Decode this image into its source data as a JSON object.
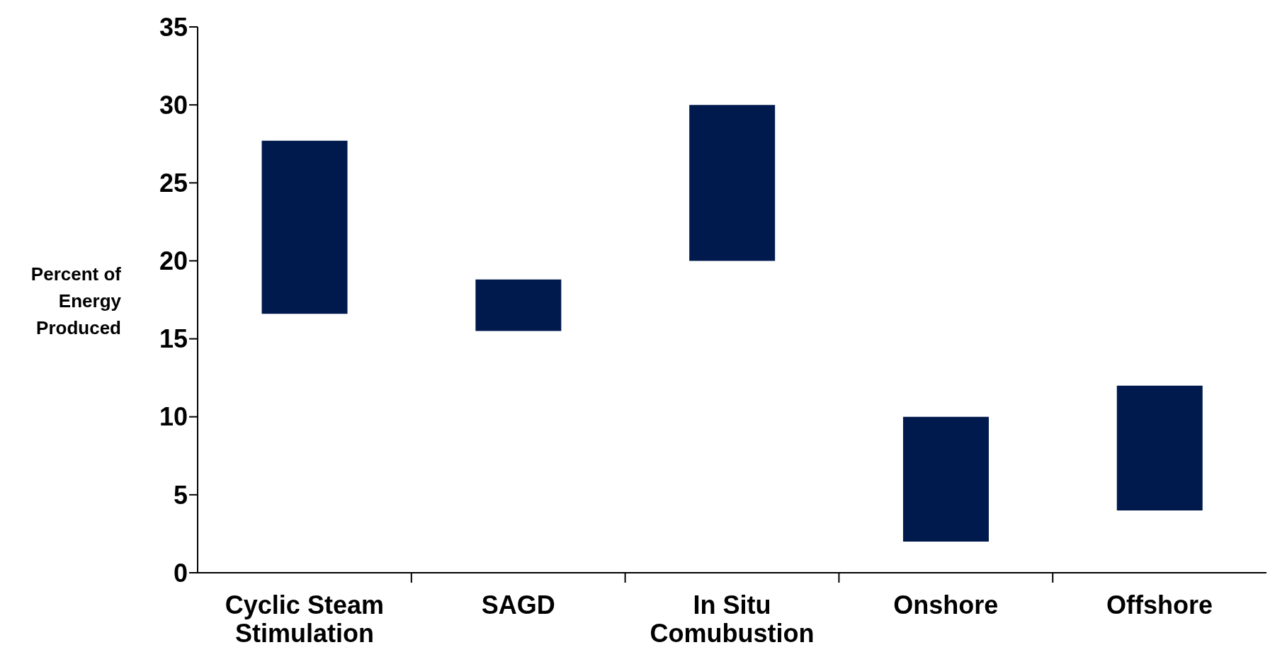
{
  "chart_data": {
    "type": "bar",
    "ylabel": "Percent of Energy Produced",
    "categories": [
      "Cyclic Steam Stimulation",
      "SAGD",
      "In Situ Comubustion",
      "Onshore",
      "Offshore"
    ],
    "base": [
      16.6,
      15.5,
      20,
      2,
      4
    ],
    "values": [
      11.1,
      3.3,
      10,
      8,
      8
    ],
    "color": "#001a4d",
    "ylim": [
      0,
      35
    ],
    "yticks": [
      0,
      5,
      10,
      15,
      20,
      25,
      30,
      35
    ],
    "grid": false
  }
}
